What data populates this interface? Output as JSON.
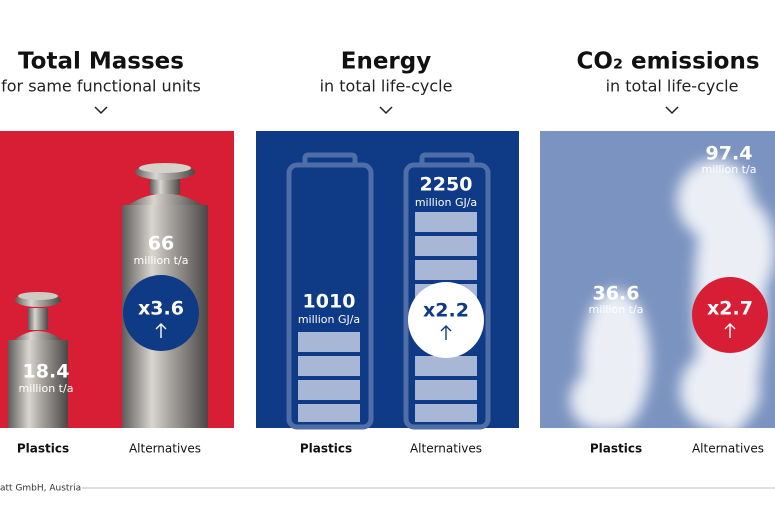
{
  "panels": [
    {
      "title": "Total Masses",
      "subtitle": "for same functional units",
      "plastics": {
        "value": 18.4,
        "unit": "million t/a",
        "label": "Plastics"
      },
      "alternatives": {
        "value": 66,
        "unit": "million t/a",
        "label": "Alternatives"
      },
      "multiplier": "x3.6"
    },
    {
      "title": "Energy",
      "subtitle": "in total life-cycle",
      "plastics": {
        "value": 1010,
        "unit": "million GJ/a",
        "label": "Plastics"
      },
      "alternatives": {
        "value": 2250,
        "unit": "million GJ/a",
        "label": "Alternatives"
      },
      "multiplier": "x2.2"
    },
    {
      "title": "CO₂ emissions",
      "subtitle": "in total life-cycle",
      "plastics": {
        "value": 36.6,
        "unit": "million t/a",
        "label": "Plastics"
      },
      "alternatives": {
        "value": 97.4,
        "unit": "million t/a",
        "label": "Alternatives"
      },
      "multiplier": "x2.7"
    }
  ],
  "footer": "att GmbH, Austria"
}
